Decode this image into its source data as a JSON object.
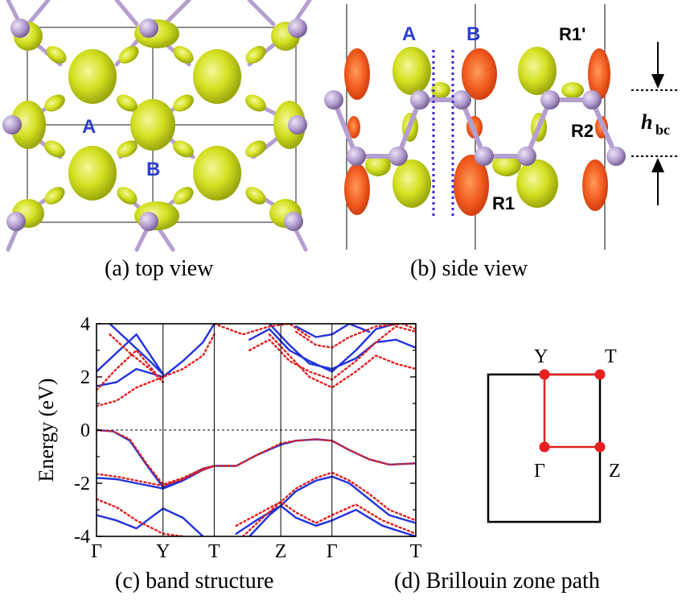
{
  "panels": {
    "a": {
      "caption": "(a) top view",
      "labels": [
        "A",
        "B"
      ]
    },
    "b": {
      "caption": "(b) side view",
      "labels": [
        "A",
        "B",
        "R1'",
        "R2",
        "R1"
      ],
      "height_label_main": "h",
      "height_label_sub": "bc"
    },
    "c": {
      "caption": "(c) band structure"
    },
    "d": {
      "caption": "(d) Brillouin zone path",
      "points": [
        "Y",
        "T",
        "Γ",
        "Z"
      ]
    }
  },
  "colors": {
    "isosurface_yellow": "#dde82c",
    "isosurface_orange": "#f05a1e",
    "atom": "#b49fd0",
    "bond": "#b49fd0",
    "label_blue": "#2a3fd0",
    "band_blue": "#2233dd",
    "band_red": "#e02020",
    "bz_path": "#e62020"
  },
  "chart_data": {
    "type": "line",
    "title": "",
    "xlabel": "",
    "ylabel": "Energy (eV)",
    "ylim": [
      -4,
      4
    ],
    "yticks": [
      -4,
      -2,
      0,
      2,
      4
    ],
    "k_points": [
      {
        "label": "Γ",
        "x": 0.0
      },
      {
        "label": "Y",
        "x": 1.0
      },
      {
        "label": "T",
        "x": 1.77
      },
      {
        "label": "Z",
        "x": 2.77
      },
      {
        "label": "Γ",
        "x": 3.54
      },
      {
        "label": "T",
        "x": 4.8
      }
    ],
    "xlim": [
      0,
      4.8
    ],
    "fermi_level": 0,
    "series": [
      {
        "style": "solid",
        "color": "#2233dd",
        "x": [
          0,
          0.25,
          0.5,
          0.75,
          1.0,
          1.3,
          1.6,
          1.77,
          2.1,
          2.4,
          2.77,
          3.0,
          3.3,
          3.54,
          3.8,
          4.1,
          4.4,
          4.8
        ],
        "y": [
          0,
          -0.05,
          -0.4,
          -1.3,
          -2.15,
          -1.85,
          -1.45,
          -1.35,
          -1.35,
          -0.95,
          -0.55,
          -0.4,
          -0.35,
          -0.4,
          -0.75,
          -1.1,
          -1.3,
          -1.25
        ]
      },
      {
        "style": "solid",
        "color": "#2233dd",
        "x": [
          0,
          0.3,
          0.6,
          1.0,
          1.3,
          1.6,
          1.77
        ],
        "y": [
          -1.8,
          -1.85,
          -2.0,
          -2.2,
          -1.9,
          -1.5,
          -1.35
        ]
      },
      {
        "style": "solid",
        "color": "#2233dd",
        "x": [
          2.1,
          2.4,
          2.77,
          3.0,
          3.3,
          3.54,
          3.8,
          4.1,
          4.4,
          4.8
        ],
        "y": [
          -3.9,
          -3.4,
          -2.85,
          -2.3,
          -1.9,
          -1.75,
          -2.0,
          -2.6,
          -3.2,
          -3.5
        ]
      },
      {
        "style": "solid",
        "color": "#2233dd",
        "x": [
          0,
          0.3,
          0.6,
          1.0,
          1.3,
          1.6
        ],
        "y": [
          -3.2,
          -3.4,
          -3.7,
          -2.95,
          -3.3,
          -4.0
        ]
      },
      {
        "style": "solid",
        "color": "#2233dd",
        "x": [
          2.3,
          2.6,
          2.77,
          3.0,
          3.3,
          3.54,
          3.9,
          4.3,
          4.8
        ],
        "y": [
          -4.0,
          -3.2,
          -2.85,
          -3.3,
          -3.6,
          -3.4,
          -3.0,
          -3.6,
          -4.0
        ]
      },
      {
        "style": "solid",
        "color": "#2233dd",
        "x": [
          0,
          0.3,
          0.6,
          1.0,
          1.3,
          1.6,
          1.77
        ],
        "y": [
          1.65,
          1.8,
          2.3,
          2.0,
          2.6,
          3.3,
          4.0
        ]
      },
      {
        "style": "solid",
        "color": "#2233dd",
        "x": [
          2.6,
          2.9,
          3.2,
          3.54,
          3.9,
          4.2,
          4.5,
          4.8
        ],
        "y": [
          4.0,
          3.2,
          2.5,
          2.3,
          2.7,
          3.3,
          3.4,
          3.1
        ]
      },
      {
        "style": "solid",
        "color": "#2233dd",
        "x": [
          0,
          0.3,
          0.6,
          1.0
        ],
        "y": [
          2.2,
          2.9,
          3.6,
          2.1
        ]
      },
      {
        "style": "solid",
        "color": "#2233dd",
        "x": [
          0.2,
          0.5,
          0.8,
          1.0
        ],
        "y": [
          4.0,
          3.3,
          2.6,
          2.1
        ]
      },
      {
        "style": "solid",
        "color": "#2233dd",
        "x": [
          2.3,
          2.6,
          2.9,
          3.2,
          3.54,
          3.9,
          4.2,
          4.5
        ],
        "y": [
          3.4,
          3.8,
          3.0,
          2.6,
          2.2,
          3.0,
          3.8,
          4.0
        ]
      },
      {
        "style": "solid",
        "color": "#2233dd",
        "x": [
          3.0,
          3.3,
          3.54,
          3.8,
          4.1
        ],
        "y": [
          3.9,
          3.5,
          3.6,
          4.0,
          3.7
        ]
      },
      {
        "style": "dotted",
        "color": "#e02020",
        "x": [
          0,
          0.25,
          0.5,
          0.75,
          1.0,
          1.3,
          1.6,
          1.77,
          2.1,
          2.4,
          2.77,
          3.0,
          3.3,
          3.54,
          3.8,
          4.1,
          4.4,
          4.8
        ],
        "y": [
          0,
          -0.05,
          -0.35,
          -1.25,
          -2.05,
          -1.8,
          -1.45,
          -1.35,
          -1.35,
          -0.95,
          -0.5,
          -0.4,
          -0.35,
          -0.4,
          -0.75,
          -1.1,
          -1.3,
          -1.25
        ]
      },
      {
        "style": "dotted",
        "color": "#e02020",
        "x": [
          0,
          0.3,
          0.6,
          1.0,
          1.3,
          1.6,
          1.77
        ],
        "y": [
          -1.65,
          -1.75,
          -1.9,
          -2.1,
          -1.85,
          -1.5,
          -1.35
        ]
      },
      {
        "style": "dotted",
        "color": "#e02020",
        "x": [
          2.1,
          2.4,
          2.77,
          3.0,
          3.3,
          3.54,
          3.8,
          4.1,
          4.4,
          4.8
        ],
        "y": [
          -3.6,
          -3.2,
          -2.7,
          -2.2,
          -1.8,
          -1.6,
          -1.9,
          -2.4,
          -3.0,
          -3.4
        ]
      },
      {
        "style": "dotted",
        "color": "#e02020",
        "x": [
          0,
          0.3,
          0.6,
          1.0,
          1.3
        ],
        "y": [
          -2.6,
          -2.9,
          -3.4,
          -3.9,
          -4.0
        ]
      },
      {
        "style": "dotted",
        "color": "#e02020",
        "x": [
          2.2,
          2.5,
          2.77,
          3.0,
          3.3,
          3.54,
          3.9,
          4.3,
          4.8
        ],
        "y": [
          -4.0,
          -3.3,
          -2.7,
          -3.1,
          -3.5,
          -3.2,
          -2.8,
          -3.4,
          -3.9
        ]
      },
      {
        "style": "dotted",
        "color": "#e02020",
        "x": [
          0,
          0.3,
          0.6,
          1.0,
          1.3,
          1.6,
          1.77
        ],
        "y": [
          0.9,
          1.1,
          1.6,
          2.0,
          2.3,
          2.8,
          3.6
        ]
      },
      {
        "style": "dotted",
        "color": "#e02020",
        "x": [
          2.6,
          2.9,
          3.2,
          3.54,
          3.9,
          4.2,
          4.5,
          4.8
        ],
        "y": [
          3.6,
          2.8,
          2.0,
          1.6,
          2.2,
          2.8,
          2.5,
          2.3
        ]
      },
      {
        "style": "dotted",
        "color": "#e02020",
        "x": [
          0,
          0.3,
          0.6,
          1.0
        ],
        "y": [
          1.5,
          2.3,
          3.0,
          1.8
        ]
      },
      {
        "style": "dotted",
        "color": "#e02020",
        "x": [
          0.2,
          0.5,
          0.8,
          1.0
        ],
        "y": [
          3.6,
          2.9,
          2.3,
          1.8
        ]
      },
      {
        "style": "dotted",
        "color": "#e02020",
        "x": [
          2.3,
          2.6,
          2.9,
          3.2,
          3.54,
          3.9,
          4.2,
          4.5,
          4.8
        ],
        "y": [
          3.0,
          3.4,
          2.6,
          2.2,
          1.9,
          2.6,
          3.3,
          3.9,
          3.7
        ]
      },
      {
        "style": "dotted",
        "color": "#e02020",
        "x": [
          1.77,
          2.2,
          2.6,
          2.9,
          3.2
        ],
        "y": [
          4.0,
          3.6,
          3.9,
          4.0,
          3.5
        ]
      },
      {
        "style": "dotted",
        "color": "#e02020",
        "x": [
          3.0,
          3.3,
          3.54,
          3.8,
          4.2,
          4.6,
          4.8
        ],
        "y": [
          3.7,
          3.2,
          3.1,
          3.5,
          3.9,
          4.0,
          3.8
        ]
      }
    ]
  }
}
